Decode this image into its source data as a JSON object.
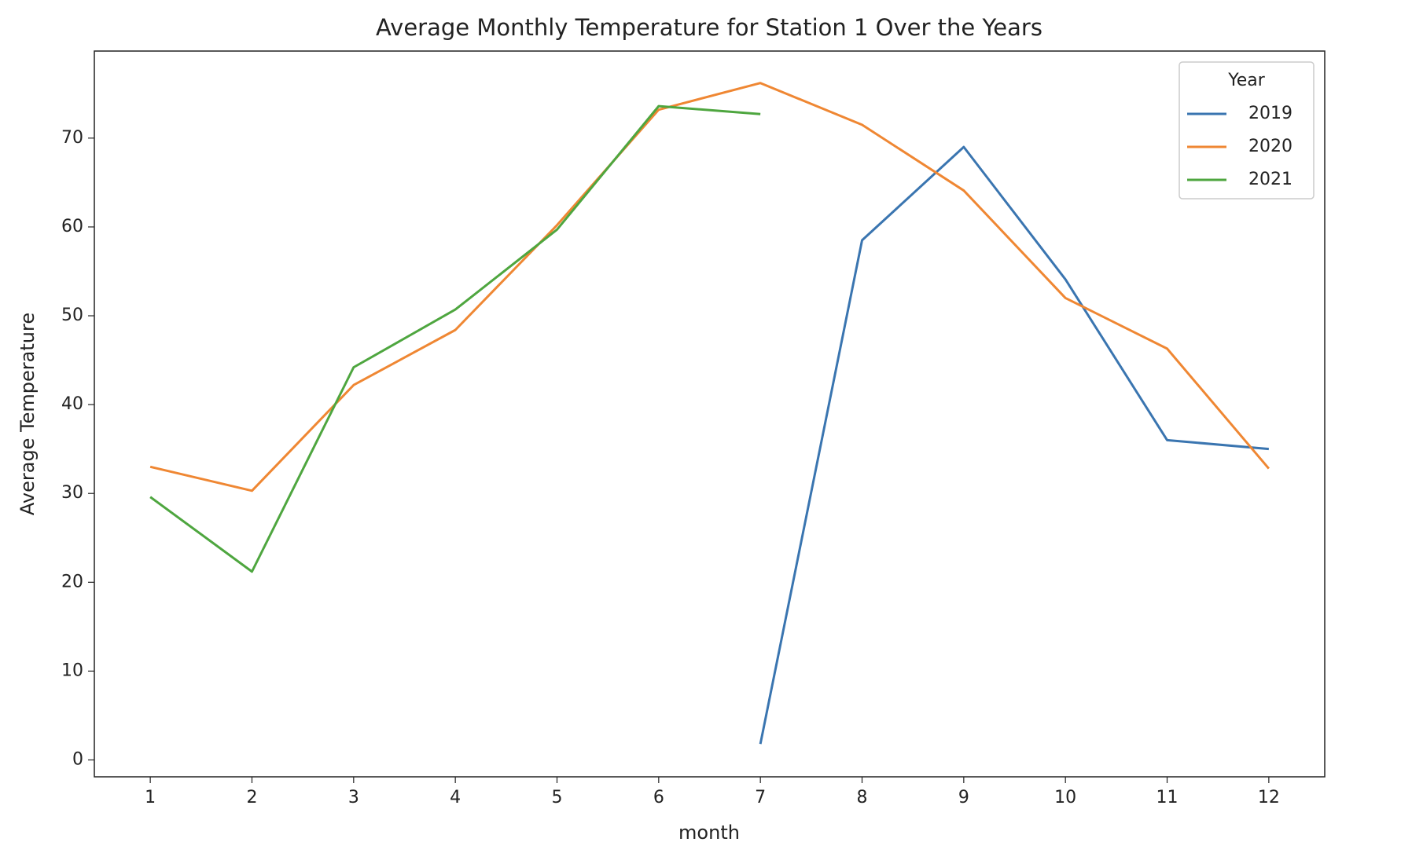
{
  "chart_data": {
    "type": "line",
    "title": "Average Monthly Temperature for Station 1 Over the Years",
    "x_label": "month",
    "y_label": "Average Temperature",
    "x": [
      1,
      2,
      3,
      4,
      5,
      6,
      7,
      8,
      9,
      10,
      11,
      12
    ],
    "series": [
      {
        "name": "2019",
        "color": "#3a75b0",
        "values": [
          null,
          null,
          null,
          null,
          null,
          null,
          1.8,
          58.5,
          69.0,
          54.1,
          36.0,
          35.0
        ]
      },
      {
        "name": "2020",
        "color": "#ef8733",
        "values": [
          33.0,
          30.3,
          42.2,
          48.4,
          60.2,
          73.2,
          76.2,
          71.5,
          64.1,
          52.0,
          46.3,
          32.8
        ]
      },
      {
        "name": "2021",
        "color": "#4ea63f",
        "values": [
          29.6,
          21.2,
          44.2,
          50.7,
          59.7,
          73.6,
          72.7,
          null,
          null,
          null,
          null,
          null
        ]
      }
    ],
    "legend_title": "Year",
    "legend": "upper right",
    "grid": false,
    "xlim": [
      0.45,
      12.55
    ],
    "xticks": [
      1,
      2,
      3,
      4,
      5,
      6,
      7,
      8,
      9,
      10,
      11,
      12
    ],
    "ylim": [
      -1.9,
      79.8
    ],
    "yticks": [
      0,
      10,
      20,
      30,
      40,
      50,
      60,
      70
    ]
  }
}
